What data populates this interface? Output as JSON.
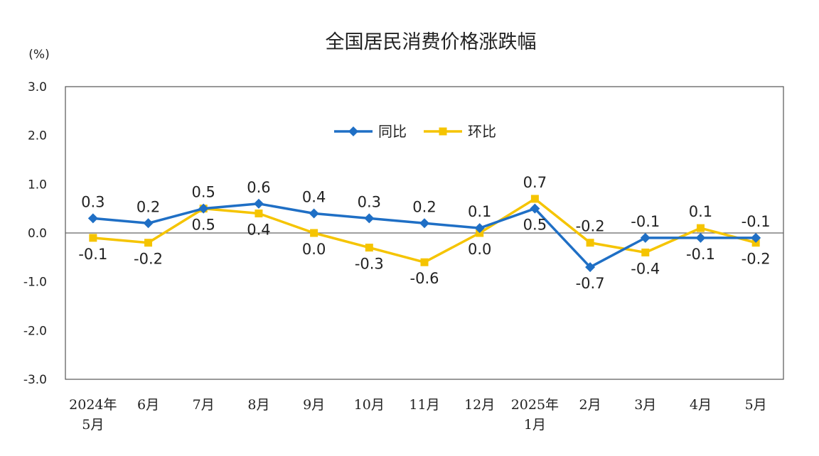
{
  "chart_data": {
    "type": "line",
    "title": "全国居民消费价格涨跌幅",
    "unit_label": "(%)",
    "ylim": [
      -3.0,
      3.0
    ],
    "y_ticks": [
      "3.0",
      "2.0",
      "1.0",
      "0.0",
      "-1.0",
      "-2.0",
      "-3.0"
    ],
    "categories": [
      [
        "2024年",
        "5月"
      ],
      [
        "6月"
      ],
      [
        "7月"
      ],
      [
        "8月"
      ],
      [
        "9月"
      ],
      [
        "10月"
      ],
      [
        "11月"
      ],
      [
        "12月"
      ],
      [
        "2025年",
        "1月"
      ],
      [
        "2月"
      ],
      [
        "3月"
      ],
      [
        "4月"
      ],
      [
        "5月"
      ]
    ],
    "series": [
      {
        "name": "同比",
        "color": "#1f6fc5",
        "marker": "diamond",
        "values": [
          0.3,
          0.2,
          0.5,
          0.6,
          0.4,
          0.3,
          0.2,
          0.1,
          0.5,
          -0.7,
          -0.1,
          -0.1,
          -0.1
        ],
        "labels": [
          "0.3",
          "0.2",
          "0.5",
          "0.6",
          "0.4",
          "0.3",
          "0.2",
          "0.1",
          "0.5",
          "-0.7",
          "-0.1",
          "-0.1",
          "-0.1"
        ]
      },
      {
        "name": "环比",
        "color": "#f5c400",
        "marker": "square",
        "values": [
          -0.1,
          -0.2,
          0.5,
          0.4,
          0.0,
          -0.3,
          -0.6,
          0.0,
          0.7,
          -0.2,
          -0.4,
          0.1,
          -0.2
        ],
        "labels": [
          "-0.1",
          "-0.2",
          "0.5",
          "0.4",
          "0.0",
          "-0.3",
          "-0.6",
          "0.0",
          "0.7",
          "-0.2",
          "-0.4",
          "0.1",
          "-0.2"
        ]
      }
    ],
    "legend_position": "top-center",
    "grid": false
  }
}
